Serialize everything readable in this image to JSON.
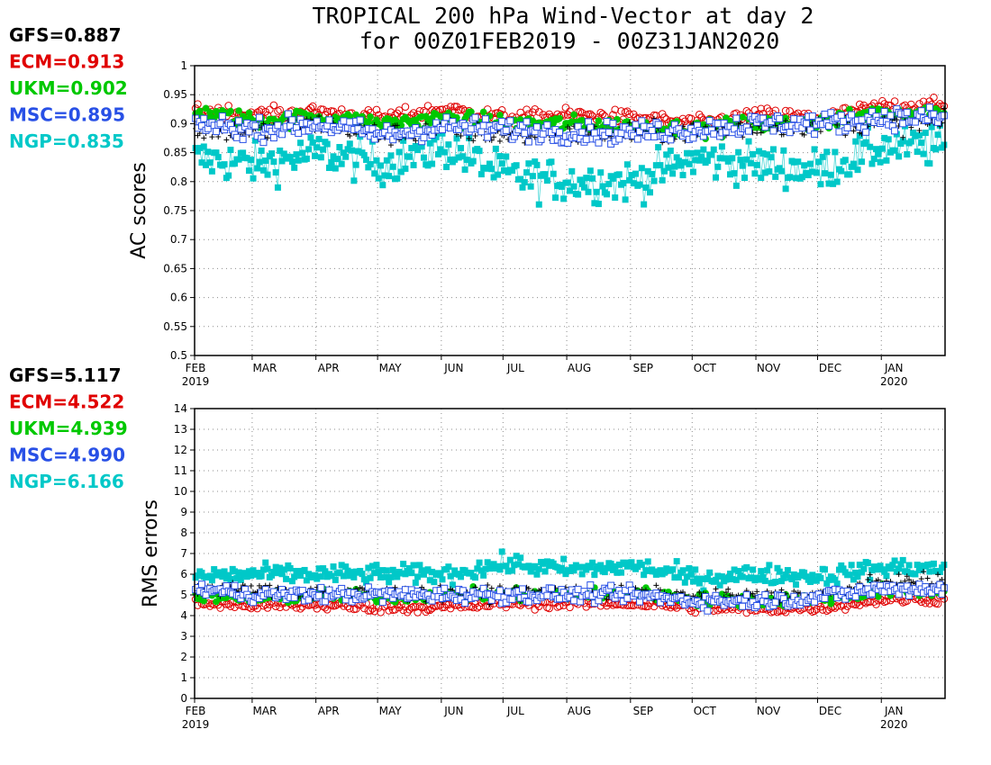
{
  "title_line1": "TROPICAL 200 hPa Wind-Vector at day 2",
  "title_line2": "for 00Z01FEB2019 - 00Z31JAN2020",
  "colors": {
    "GFS": "#000000",
    "ECM": "#e00000",
    "UKM": "#00c800",
    "MSC": "#2850e6",
    "NGP": "#00c8c8"
  },
  "months": [
    "FEB",
    "MAR",
    "APR",
    "MAY",
    "JUN",
    "JUL",
    "AUG",
    "SEP",
    "OCT",
    "NOV",
    "DEC",
    "JAN"
  ],
  "years": [
    "2019",
    "2020"
  ],
  "ac_panel": {
    "ylabel": "AC scores",
    "scores": [
      {
        "model": "GFS",
        "label": "GFS=0.887"
      },
      {
        "model": "ECM",
        "label": "ECM=0.913"
      },
      {
        "model": "UKM",
        "label": "UKM=0.902"
      },
      {
        "model": "MSC",
        "label": "MSC=0.895"
      },
      {
        "model": "NGP",
        "label": "NGP=0.835"
      }
    ],
    "ylim": [
      0.5,
      1
    ],
    "ticks": [
      "0.5",
      "0.55",
      "0.6",
      "0.65",
      "0.7",
      "0.75",
      "0.8",
      "0.85",
      "0.9",
      "0.95",
      "1"
    ]
  },
  "rms_panel": {
    "ylabel": "RMS errors",
    "scores": [
      {
        "model": "GFS",
        "label": "GFS=5.117"
      },
      {
        "model": "ECM",
        "label": "ECM=4.522"
      },
      {
        "model": "UKM",
        "label": "UKM=4.939"
      },
      {
        "model": "MSC",
        "label": "MSC=4.990"
      },
      {
        "model": "NGP",
        "label": "NGP=6.166"
      }
    ],
    "ylim": [
      0,
      14
    ],
    "ticks": [
      "0",
      "1",
      "2",
      "3",
      "4",
      "5",
      "6",
      "7",
      "8",
      "9",
      "10",
      "11",
      "12",
      "13",
      "14"
    ]
  },
  "chart_data": [
    {
      "type": "scatter",
      "title": "TROPICAL 200 hPa Wind-Vector at day 2",
      "ylabel": "AC scores",
      "xlabel": "",
      "x_range": [
        "2019-02-01",
        "2020-01-31"
      ],
      "ylim": [
        0.5,
        1
      ],
      "grid": true,
      "series": [
        {
          "name": "GFS",
          "mean": 0.887,
          "monthly": [
            0.89,
            0.885,
            0.9,
            0.88,
            0.89,
            0.88,
            0.88,
            0.885,
            0.885,
            0.895,
            0.9,
            0.9
          ]
        },
        {
          "name": "ECM",
          "mean": 0.913,
          "monthly": [
            0.925,
            0.915,
            0.92,
            0.91,
            0.925,
            0.91,
            0.915,
            0.91,
            0.9,
            0.915,
            0.91,
            0.93
          ]
        },
        {
          "name": "UKM",
          "mean": 0.902,
          "monthly": [
            0.92,
            0.905,
            0.91,
            0.9,
            0.91,
            0.9,
            0.9,
            0.895,
            0.89,
            0.9,
            0.9,
            0.92
          ]
        },
        {
          "name": "MSC",
          "mean": 0.895,
          "monthly": [
            0.9,
            0.89,
            0.9,
            0.88,
            0.895,
            0.89,
            0.885,
            0.885,
            0.89,
            0.9,
            0.9,
            0.91
          ]
        },
        {
          "name": "NGP",
          "mean": 0.835,
          "monthly": [
            0.84,
            0.83,
            0.85,
            0.83,
            0.86,
            0.81,
            0.8,
            0.8,
            0.84,
            0.83,
            0.82,
            0.86
          ]
        }
      ]
    },
    {
      "type": "scatter",
      "ylabel": "RMS errors",
      "xlabel": "",
      "x_range": [
        "2019-02-01",
        "2020-01-31"
      ],
      "ylim": [
        0,
        14
      ],
      "grid": true,
      "series": [
        {
          "name": "GFS",
          "mean": 5.117,
          "monthly": [
            5.3,
            5.2,
            5.1,
            5.1,
            5.0,
            5.1,
            5.1,
            5.1,
            4.9,
            4.9,
            5.0,
            5.6
          ]
        },
        {
          "name": "ECM",
          "mean": 4.522,
          "monthly": [
            4.6,
            4.5,
            4.5,
            4.4,
            4.4,
            4.6,
            4.6,
            4.6,
            4.4,
            4.3,
            4.4,
            4.8
          ]
        },
        {
          "name": "UKM",
          "mean": 4.939,
          "monthly": [
            5.0,
            4.8,
            5.0,
            4.9,
            5.0,
            5.0,
            5.0,
            5.1,
            4.8,
            4.7,
            4.8,
            5.2
          ]
        },
        {
          "name": "MSC",
          "mean": 4.99,
          "monthly": [
            5.3,
            5.0,
            5.0,
            5.0,
            5.0,
            5.0,
            5.0,
            5.0,
            4.7,
            4.7,
            4.9,
            5.3
          ]
        },
        {
          "name": "NGP",
          "mean": 6.166,
          "monthly": [
            5.9,
            6.0,
            6.0,
            6.0,
            6.0,
            6.5,
            6.2,
            6.4,
            5.8,
            6.0,
            5.9,
            6.3
          ]
        }
      ]
    }
  ]
}
